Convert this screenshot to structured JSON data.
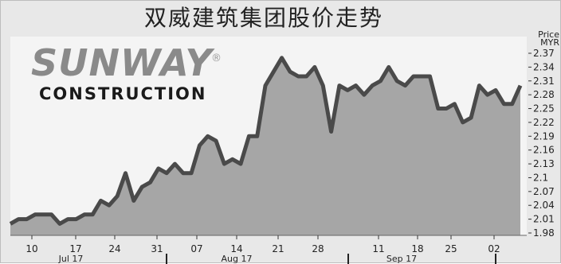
{
  "title": "双威建筑集团股价走势",
  "logo": {
    "main": "SUNWAY",
    "sub": "CONSTRUCTION",
    "registered": "®"
  },
  "colors": {
    "background": "#e8e8e8",
    "area": "#a6a6a6",
    "line": "#4a4a4a",
    "panel": "#f4f4f4"
  },
  "chart_data": {
    "type": "area",
    "title": "双威建筑集团股价走势",
    "y_axis_label": "Price",
    "y_axis_unit": "MYR",
    "y_axis_side": "right",
    "ylim": [
      1.95,
      2.385
    ],
    "y_ticks": [
      "2.37",
      "2.34",
      "2.31",
      "2.28",
      "2.25",
      "2.22",
      "2.19",
      "2.16",
      "2.13",
      "2.1",
      "2.07",
      "2.04",
      "2.01",
      "1.98"
    ],
    "x_tick_labels": [
      "10",
      "17",
      "24",
      "31",
      "07",
      "14",
      "21",
      "28",
      "11",
      "18",
      "25",
      "02"
    ],
    "month_labels": [
      "Jul 17",
      "Aug 17",
      "Sep 17"
    ],
    "grid": false,
    "series": [
      {
        "values": [
          2.0,
          2.01,
          2.01,
          2.02,
          2.02,
          2.02,
          2.0,
          2.01,
          2.01,
          2.02,
          2.02,
          2.05,
          2.04,
          2.06,
          2.11,
          2.05,
          2.08,
          2.09,
          2.12,
          2.11,
          2.13,
          2.11,
          2.11,
          2.17,
          2.19,
          2.18,
          2.13,
          2.14,
          2.13,
          2.19,
          2.19,
          2.3,
          2.33,
          2.36,
          2.33,
          2.32,
          2.32,
          2.34,
          2.3,
          2.2,
          2.3,
          2.29,
          2.3,
          2.28,
          2.3,
          2.31,
          2.34,
          2.31,
          2.3,
          2.32,
          2.32,
          2.32,
          2.25,
          2.25,
          2.26,
          2.22,
          2.23,
          2.3,
          2.28,
          2.29,
          2.26,
          2.26,
          2.3
        ]
      }
    ]
  }
}
